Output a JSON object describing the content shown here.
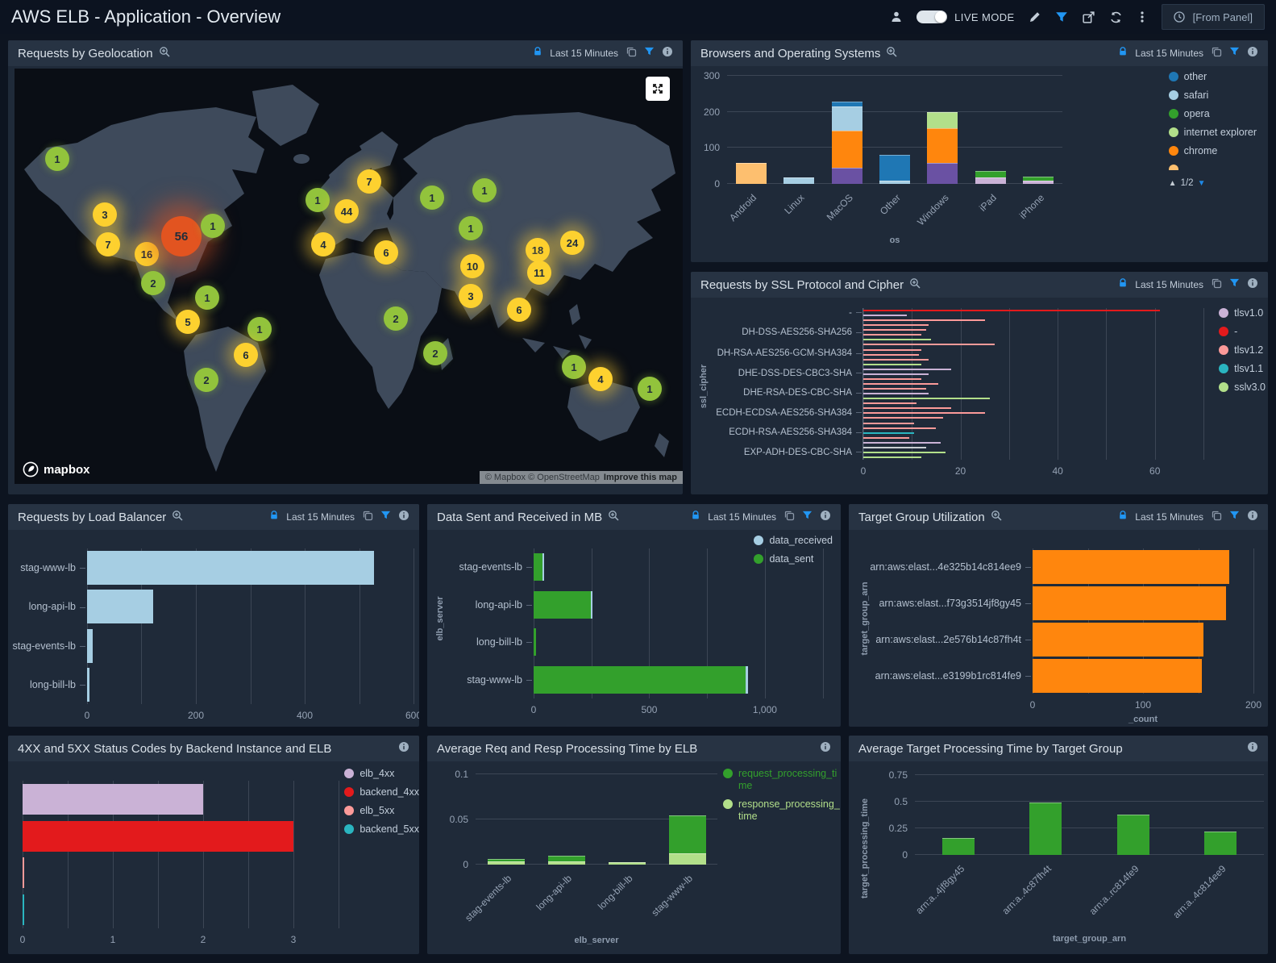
{
  "palette": {
    "blue": "#1f77b4",
    "lightblue": "#a6cee3",
    "green": "#33a02c",
    "lightgreen": "#b2df8a",
    "orange": "#ff860d",
    "lightorange": "#fdbf6f",
    "purple": "#6a51a3",
    "plum": "#cab2d6",
    "red": "#e31a1c",
    "salmon": "#fb9a99",
    "teal": "#2ab5c0",
    "gray": "#c9ced3"
  },
  "topbar": {
    "title": "AWS ELB - Application - Overview",
    "live_mode_label": "LIVE MODE",
    "from_panel_label": "[From Panel]"
  },
  "time_range": "Last 15 Minutes",
  "map_panel": {
    "title": "Requests by Geolocation",
    "attribution": "© Mapbox © OpenStreetMap",
    "improve_link": "Improve this map",
    "logo_text": "mapbox",
    "markers": [
      {
        "x": 53,
        "y": 112,
        "n": "1",
        "c": "g"
      },
      {
        "x": 112,
        "y": 181,
        "n": "3",
        "c": "y"
      },
      {
        "x": 116,
        "y": 218,
        "n": "7",
        "c": "y"
      },
      {
        "x": 164,
        "y": 230,
        "n": "16",
        "c": "y"
      },
      {
        "x": 207,
        "y": 208,
        "n": "56",
        "c": "r",
        "big": true
      },
      {
        "x": 246,
        "y": 195,
        "n": "1",
        "c": "g"
      },
      {
        "x": 172,
        "y": 266,
        "n": "2",
        "c": "g"
      },
      {
        "x": 239,
        "y": 284,
        "n": "1",
        "c": "g"
      },
      {
        "x": 215,
        "y": 314,
        "n": "5",
        "c": "y"
      },
      {
        "x": 304,
        "y": 323,
        "n": "1",
        "c": "g"
      },
      {
        "x": 287,
        "y": 355,
        "n": "6",
        "c": "y"
      },
      {
        "x": 238,
        "y": 386,
        "n": "2",
        "c": "g"
      },
      {
        "x": 376,
        "y": 163,
        "n": "1",
        "c": "g"
      },
      {
        "x": 440,
        "y": 140,
        "n": "7",
        "c": "y"
      },
      {
        "x": 412,
        "y": 177,
        "n": "44",
        "c": "y"
      },
      {
        "x": 518,
        "y": 160,
        "n": "1",
        "c": "g"
      },
      {
        "x": 583,
        "y": 151,
        "n": "1",
        "c": "g"
      },
      {
        "x": 566,
        "y": 198,
        "n": "1",
        "c": "g"
      },
      {
        "x": 383,
        "y": 218,
        "n": "4",
        "c": "y"
      },
      {
        "x": 461,
        "y": 228,
        "n": "6",
        "c": "y"
      },
      {
        "x": 568,
        "y": 245,
        "n": "10",
        "c": "y"
      },
      {
        "x": 566,
        "y": 282,
        "n": "3",
        "c": "y"
      },
      {
        "x": 649,
        "y": 225,
        "n": "18",
        "c": "y"
      },
      {
        "x": 651,
        "y": 253,
        "n": "11",
        "c": "y"
      },
      {
        "x": 692,
        "y": 216,
        "n": "24",
        "c": "y"
      },
      {
        "x": 626,
        "y": 299,
        "n": "6",
        "c": "y"
      },
      {
        "x": 473,
        "y": 310,
        "n": "2",
        "c": "g"
      },
      {
        "x": 522,
        "y": 353,
        "n": "2",
        "c": "g"
      },
      {
        "x": 694,
        "y": 370,
        "n": "1",
        "c": "g"
      },
      {
        "x": 727,
        "y": 385,
        "n": "4",
        "c": "y"
      },
      {
        "x": 788,
        "y": 397,
        "n": "1",
        "c": "g"
      }
    ]
  },
  "chart_data": {
    "browsers": {
      "type": "bar-vertical-stacked",
      "title": "Browsers and Operating Systems",
      "xlabel": "os",
      "ymax": 310,
      "yticks": [
        {
          "v": 0,
          "label": "0"
        },
        {
          "v": 100,
          "label": "100"
        },
        {
          "v": 200,
          "label": "200"
        },
        {
          "v": 300,
          "label": "300"
        }
      ],
      "categories": [
        "Android",
        "Linux",
        "MacOS",
        "Other",
        "Windows",
        "iPad",
        "iPhone"
      ],
      "bars": [
        [
          {
            "c": "lightorange",
            "v": 58
          }
        ],
        [
          {
            "c": "lightblue",
            "v": 19
          }
        ],
        [
          {
            "c": "purple",
            "v": 44
          },
          {
            "c": "orange",
            "v": 104
          },
          {
            "c": "lightblue",
            "v": 68
          },
          {
            "c": "blue",
            "v": 13
          }
        ],
        [
          {
            "c": "lightblue",
            "v": 8
          },
          {
            "c": "blue",
            "v": 73
          }
        ],
        [
          {
            "c": "purple",
            "v": 58
          },
          {
            "c": "orange",
            "v": 97
          },
          {
            "c": "lightgreen",
            "v": 44
          }
        ],
        [
          {
            "c": "plum",
            "v": 19
          },
          {
            "c": "green",
            "v": 17
          }
        ],
        [
          {
            "c": "plum",
            "v": 8
          },
          {
            "c": "green",
            "v": 12
          }
        ]
      ],
      "legend": [
        {
          "label": "other",
          "c": "blue"
        },
        {
          "label": "safari",
          "c": "lightblue"
        },
        {
          "label": "opera",
          "c": "green"
        },
        {
          "label": "internet explorer",
          "c": "lightgreen"
        },
        {
          "label": "chrome",
          "c": "orange"
        },
        {
          "label": "",
          "c": "lightorange",
          "clipped": true
        }
      ],
      "legend_page": "1/2"
    },
    "ssl": {
      "type": "bar-horizontal",
      "title": "Requests by SSL Protocol and Cipher",
      "ylabel": "ssl_cipher",
      "xmax": 70,
      "grid_step": 10,
      "xticks": [
        {
          "v": 0,
          "label": "0"
        },
        {
          "v": 20,
          "label": "20"
        },
        {
          "v": 40,
          "label": "40"
        },
        {
          "v": 60,
          "label": "60"
        }
      ],
      "row_labels": [
        {
          "text": "-",
          "pos": 0.03
        },
        {
          "text": "DH-DSS-AES256-SHA256",
          "pos": 0.16
        },
        {
          "text": "DH-RSA-AES256-GCM-SHA384",
          "pos": 0.3
        },
        {
          "text": "DHE-DSS-DES-CBC3-SHA",
          "pos": 0.43
        },
        {
          "text": "DHE-RSA-DES-CBC-SHA",
          "pos": 0.56
        },
        {
          "text": "ECDH-ECDSA-AES256-SHA384",
          "pos": 0.69
        },
        {
          "text": "ECDH-RSA-AES256-SHA384",
          "pos": 0.82
        },
        {
          "text": "EXP-ADH-DES-CBC-SHA",
          "pos": 0.95
        }
      ],
      "bars": [
        {
          "c": "red",
          "v": 61
        },
        {
          "c": "plum",
          "v": 9
        },
        {
          "c": "salmon",
          "v": 25
        },
        {
          "c": "salmon",
          "v": 13.5
        },
        {
          "c": "salmon",
          "v": 13
        },
        {
          "c": "salmon",
          "v": 12
        },
        {
          "c": "lightgreen",
          "v": 14
        },
        {
          "c": "salmon",
          "v": 27
        },
        {
          "c": "salmon",
          "v": 12
        },
        {
          "c": "salmon",
          "v": 11.5
        },
        {
          "c": "salmon",
          "v": 13.5
        },
        {
          "c": "lightgreen",
          "v": 12
        },
        {
          "c": "plum",
          "v": 18
        },
        {
          "c": "plum",
          "v": 13.5
        },
        {
          "c": "salmon",
          "v": 12
        },
        {
          "c": "salmon",
          "v": 15.5
        },
        {
          "c": "salmon",
          "v": 13
        },
        {
          "c": "plum",
          "v": 13.5
        },
        {
          "c": "lightgreen",
          "v": 26
        },
        {
          "c": "salmon",
          "v": 11
        },
        {
          "c": "salmon",
          "v": 18
        },
        {
          "c": "salmon",
          "v": 25
        },
        {
          "c": "salmon",
          "v": 16.5
        },
        {
          "c": "salmon",
          "v": 10.5
        },
        {
          "c": "salmon",
          "v": 15
        },
        {
          "c": "teal",
          "v": 10.5
        },
        {
          "c": "salmon",
          "v": 9.5
        },
        {
          "c": "plum",
          "v": 16
        },
        {
          "c": "gray",
          "v": 13
        },
        {
          "c": "lightgreen",
          "v": 17
        },
        {
          "c": "lightgreen",
          "v": 12
        }
      ],
      "legend": [
        {
          "label": "tlsv1.0",
          "c": "plum"
        },
        {
          "label": "-",
          "c": "red"
        },
        {
          "label": "tlsv1.2",
          "c": "salmon"
        },
        {
          "label": "tlsv1.1",
          "c": "teal"
        },
        {
          "label": "sslv3.0",
          "c": "lightgreen"
        }
      ]
    },
    "lb": {
      "type": "bar-horizontal",
      "title": "Requests by Load Balancer",
      "xmax": 600,
      "grid_step": 100,
      "xticks": [
        {
          "v": 0,
          "label": "0"
        },
        {
          "v": 200,
          "label": "200"
        },
        {
          "v": 400,
          "label": "400"
        },
        {
          "v": 600,
          "label": "600"
        }
      ],
      "rows": [
        {
          "label": "stag-www-lb",
          "segments": [
            {
              "c": "lightblue",
              "v": 528
            }
          ]
        },
        {
          "label": "long-api-lb",
          "segments": [
            {
              "c": "lightblue",
              "v": 121
            }
          ]
        },
        {
          "label": "stag-events-lb",
          "segments": [
            {
              "c": "lightblue",
              "v": 11
            }
          ]
        },
        {
          "label": "long-bill-lb",
          "segments": [
            {
              "c": "lightblue",
              "v": 4
            }
          ]
        }
      ]
    },
    "data_mb": {
      "type": "bar-horizontal-stacked",
      "title": "Data Sent and Received in MB",
      "ylabel": "elb_server",
      "xmax": 1300,
      "grid_step": 250,
      "xticks": [
        {
          "v": 0,
          "label": "0"
        },
        {
          "v": 500,
          "label": "500"
        },
        {
          "v": 1000,
          "label": "1,000"
        }
      ],
      "rows": [
        {
          "label": "stag-events-lb",
          "segments": [
            {
              "c": "green",
              "v": 39
            },
            {
              "c": "lightblue",
              "v": 8
            }
          ]
        },
        {
          "label": "long-api-lb",
          "segments": [
            {
              "c": "green",
              "v": 246
            },
            {
              "c": "lightblue",
              "v": 8
            }
          ]
        },
        {
          "label": "long-bill-lb",
          "segments": [
            {
              "c": "green",
              "v": 9
            }
          ]
        },
        {
          "label": "stag-www-lb",
          "segments": [
            {
              "c": "green",
              "v": 918
            },
            {
              "c": "lightblue",
              "v": 10
            }
          ]
        }
      ],
      "legend": [
        {
          "label": "data_received",
          "c": "lightblue"
        },
        {
          "label": "data_sent",
          "c": "green"
        }
      ]
    },
    "tgu": {
      "type": "bar-horizontal",
      "title": "Target Group Utilization",
      "ylabel": "target_group_arn",
      "xlabel": "_count",
      "xmax": 200,
      "grid_step": 50,
      "xticks": [
        {
          "v": 0,
          "label": "0"
        },
        {
          "v": 100,
          "label": "100"
        },
        {
          "v": 200,
          "label": "200"
        }
      ],
      "rows": [
        {
          "label": "arn:aws:elast...4e325b14c814ee9",
          "segments": [
            {
              "c": "orange",
              "v": 178
            }
          ]
        },
        {
          "label": "arn:aws:elast...f73g3514jf8gy45",
          "segments": [
            {
              "c": "orange",
              "v": 175
            }
          ]
        },
        {
          "label": "arn:aws:elast...2e576b14c87fh4t",
          "segments": [
            {
              "c": "orange",
              "v": 155
            }
          ]
        },
        {
          "label": "arn:aws:elast...e3199b1rc814fe9",
          "segments": [
            {
              "c": "orange",
              "v": 153
            }
          ]
        }
      ]
    },
    "codes": {
      "type": "bar-horizontal",
      "title": "4XX and 5XX Status Codes by Backend Instance and ELB",
      "xmax": 3.5,
      "grid_step": 0.5,
      "xticks": [
        {
          "v": 0,
          "label": "0"
        },
        {
          "v": 1,
          "label": "1"
        },
        {
          "v": 2,
          "label": "2"
        },
        {
          "v": 3,
          "label": "3"
        }
      ],
      "rows": [
        {
          "label": "",
          "segments": [
            {
              "c": "plum",
              "v": 2
            }
          ]
        },
        {
          "label": "",
          "segments": [
            {
              "c": "red",
              "v": 3
            }
          ]
        },
        {
          "label": "",
          "segments": [
            {
              "c": "salmon",
              "v": 0.02
            }
          ]
        },
        {
          "label": "",
          "segments": [
            {
              "c": "teal",
              "v": 0.02
            }
          ]
        }
      ],
      "legend": [
        {
          "label": "elb_4xx",
          "c": "plum"
        },
        {
          "label": "backend_4xx",
          "c": "red"
        },
        {
          "label": "elb_5xx",
          "c": "salmon"
        },
        {
          "label": "backend_5xx",
          "c": "teal"
        }
      ]
    },
    "avgreq": {
      "type": "bar-vertical-stacked",
      "title": "Average Req and Resp Processing Time by ELB",
      "xlabel": "elb_server",
      "ymax": 0.105,
      "yticks": [
        {
          "v": 0,
          "label": "0"
        },
        {
          "v": 0.05,
          "label": "0.05"
        },
        {
          "v": 0.1,
          "label": "0.1"
        }
      ],
      "categories": [
        "stag-events-lb",
        "long-api-lb",
        "long-bill-lb",
        "stag-www-lb"
      ],
      "bars": [
        [
          {
            "c": "lightgreen",
            "v": 0.0034
          },
          {
            "c": "green",
            "v": 0.0026
          }
        ],
        [
          {
            "c": "lightgreen",
            "v": 0.0034
          },
          {
            "c": "green",
            "v": 0.0065
          }
        ],
        [
          {
            "c": "lightgreen",
            "v": 0.0023
          }
        ],
        [
          {
            "c": "lightgreen",
            "v": 0.0122
          },
          {
            "c": "green",
            "v": 0.0423
          }
        ]
      ],
      "legend": [
        {
          "label": "request_processing_time",
          "c": "green",
          "text_c": "green"
        },
        {
          "label": "response_processing_time",
          "c": "lightgreen",
          "text_c": "lightgreen"
        }
      ]
    },
    "avgtgt": {
      "type": "bar-vertical",
      "title": "Average Target Processing Time by Target Group",
      "xlabel": "target_group_arn",
      "ylabel": "target_processing_time",
      "ymax": 0.8,
      "yticks": [
        {
          "v": 0,
          "label": "0"
        },
        {
          "v": 0.25,
          "label": "0.25"
        },
        {
          "v": 0.5,
          "label": "0.5"
        },
        {
          "v": 0.75,
          "label": "0.75"
        }
      ],
      "categories": [
        "arn:a..4jf8gy45",
        "arn:a..4c87fh4t",
        "arn:a..rc814fe9",
        "arn:a..4c814ee9"
      ],
      "bars": [
        [
          {
            "c": "green",
            "v": 0.16
          }
        ],
        [
          {
            "c": "green",
            "v": 0.49
          }
        ],
        [
          {
            "c": "green",
            "v": 0.38
          }
        ],
        [
          {
            "c": "green",
            "v": 0.22
          }
        ]
      ]
    }
  }
}
